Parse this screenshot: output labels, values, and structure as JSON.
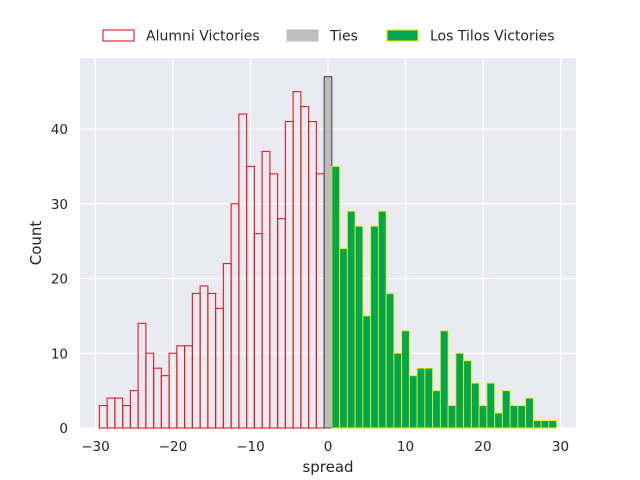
{
  "chart_data": {
    "type": "bar",
    "title": "",
    "xlabel": "spread",
    "ylabel": "Count",
    "xlim": [
      -32,
      32
    ],
    "ylim": [
      0,
      49.5
    ],
    "xticks": [
      "−30",
      "−20",
      "−10",
      "0",
      "10",
      "20",
      "30"
    ],
    "yticks": [
      "0",
      "10",
      "20",
      "30",
      "40"
    ],
    "grid": true,
    "legend_position": "top-center",
    "series": [
      {
        "name": "Alumni Victories",
        "style": "outline",
        "color": "#e31a1c",
        "x": [
          -29,
          -28,
          -27,
          -26,
          -25,
          -24,
          -23,
          -22,
          -21,
          -20,
          -19,
          -18,
          -17,
          -16,
          -15,
          -14,
          -13,
          -12,
          -11,
          -10,
          -9,
          -8,
          -7,
          -6,
          -5,
          -4,
          -3,
          -2,
          -1
        ],
        "values": [
          3,
          4,
          4,
          3,
          5,
          14,
          10,
          8,
          7,
          10,
          11,
          11,
          18,
          19,
          18,
          16,
          22,
          30,
          42,
          35,
          26,
          37,
          34,
          28,
          41,
          45,
          43,
          41,
          34
        ]
      },
      {
        "name": "Ties",
        "style": "filled",
        "color": "#bdbdbd",
        "edge_color": "#333333",
        "x": [
          0
        ],
        "values": [
          47
        ]
      },
      {
        "name": "Los Tilos Victories",
        "style": "filled",
        "color": "#00a651",
        "edge_color": "#f0f000",
        "x": [
          1,
          2,
          3,
          4,
          5,
          6,
          7,
          8,
          9,
          10,
          11,
          12,
          13,
          14,
          15,
          16,
          17,
          18,
          19,
          20,
          21,
          22,
          23,
          24,
          25,
          26,
          27,
          28,
          29
        ],
        "values": [
          35,
          24,
          29,
          27,
          15,
          27,
          29,
          18,
          10,
          13,
          7,
          8,
          8,
          5,
          13,
          3,
          10,
          9,
          6,
          3,
          6,
          2,
          5,
          3,
          3,
          4,
          1,
          1,
          1
        ]
      }
    ]
  }
}
